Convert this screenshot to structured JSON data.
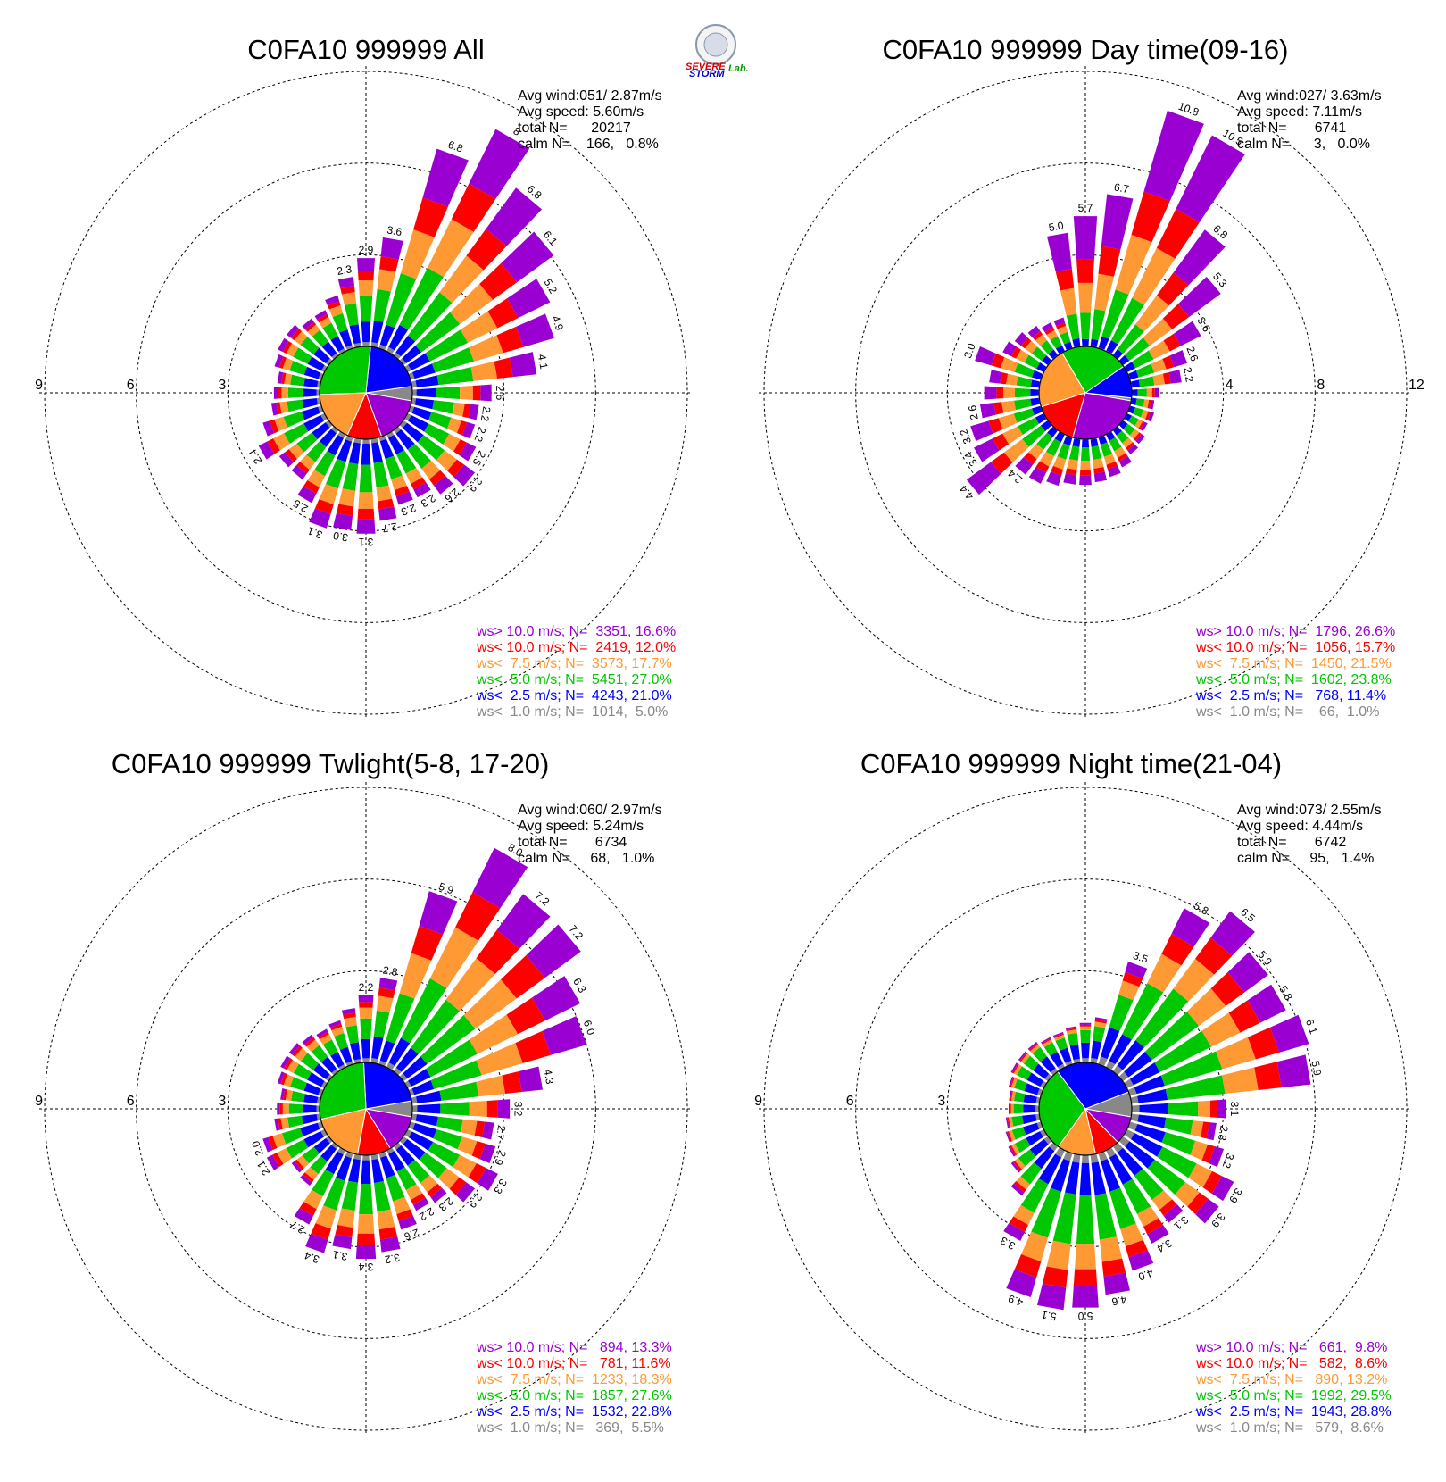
{
  "logo": {
    "word1": "SEVERE",
    "word2": "STORM",
    "word3": "Lab."
  },
  "colors": {
    "gt10": "#9a00d2",
    "lt10": "#ff0000",
    "lt75": "#ff9933",
    "lt5": "#00c800",
    "lt25": "#0000ff",
    "lt1": "#888888"
  },
  "chart_data": [
    {
      "type": "windrose",
      "title": "C0FA10 999999 All",
      "stats": [
        "Avg wind:051/ 2.87m/s",
        "Avg speed: 5.60m/s",
        "total N=      20217",
        "calm N=    166,   0.8%"
      ],
      "ring_labels": [
        "3",
        "6",
        "9"
      ],
      "ring_max": 9,
      "directions_deg": [
        0,
        10,
        20,
        30,
        40,
        50,
        60,
        70,
        80,
        90,
        100,
        110,
        120,
        130,
        140,
        150,
        160,
        170,
        180,
        190,
        200,
        210,
        220,
        230,
        240,
        250,
        260,
        270,
        280,
        290,
        300,
        310,
        320,
        330,
        340,
        350
      ],
      "totals_pct": [
        2.9,
        3.6,
        6.8,
        8.1,
        6.8,
        6.1,
        5.2,
        4.9,
        4.1,
        2.6,
        2.2,
        2.2,
        2.5,
        2.9,
        2.6,
        2.3,
        2.3,
        2.7,
        3.1,
        3.0,
        3.1,
        2.5,
        2.0,
        2.0,
        2.4,
        2.0,
        1.6,
        1.5,
        1.4,
        1.6,
        1.7,
        1.7,
        1.5,
        1.5,
        1.8,
        2.3
      ],
      "bar_labels": [
        "2.9",
        "3.6",
        "6.8",
        "8",
        "6.8",
        "6.1",
        "5.2",
        "4.9",
        "4.1",
        "2.6",
        "2.2",
        "2.2",
        "2.5",
        "2.9",
        "2.6",
        "2.3",
        "2.3",
        "2.7",
        "3.1",
        "3.0",
        "3.1",
        "2.5",
        "",
        "",
        "2.4",
        "",
        "",
        "",
        "",
        "",
        "",
        "",
        "",
        "",
        "",
        "2.3"
      ],
      "legend": [
        {
          "text": "ws> 10.0 m/s; N=  3351, 16.6%",
          "key": "gt10"
        },
        {
          "text": "ws< 10.0 m/s; N=  2419, 12.0%",
          "key": "lt10"
        },
        {
          "text": "ws<  7.5 m/s; N=  3573, 17.7%",
          "key": "lt75"
        },
        {
          "text": "ws<  5.0 m/s; N=  5451, 27.0%",
          "key": "lt5"
        },
        {
          "text": "ws<  2.5 m/s; N=  4243, 21.0%",
          "key": "lt25"
        },
        {
          "text": "ws<  1.0 m/s; N=  1014,  5.0%",
          "key": "lt1"
        }
      ],
      "class_pct": [
        16.6,
        12.0,
        17.7,
        27.0,
        21.0,
        5.0
      ]
    },
    {
      "type": "windrose",
      "title": "C0FA10 999999 Day time(09-16)",
      "stats": [
        "Avg wind:027/ 3.63m/s",
        "Avg speed: 7.11m/s",
        "total N=       6741",
        "calm N=      3,   0.0%"
      ],
      "ring_labels": [
        "4",
        "8",
        "12"
      ],
      "ring_max": 12,
      "directions_deg": [
        0,
        10,
        20,
        30,
        40,
        50,
        60,
        70,
        80,
        90,
        100,
        110,
        120,
        130,
        140,
        150,
        160,
        170,
        180,
        190,
        200,
        210,
        220,
        230,
        240,
        250,
        260,
        270,
        280,
        290,
        300,
        310,
        320,
        330,
        340,
        350
      ],
      "totals_pct": [
        5.7,
        6.7,
        10.8,
        10.5,
        6.8,
        5.3,
        3.6,
        2.6,
        2.2,
        1.2,
        1.0,
        1.1,
        1.0,
        1.2,
        1.3,
        1.6,
        1.8,
        1.9,
        2.0,
        2.0,
        2.2,
        2.4,
        2.4,
        4.4,
        3.4,
        3.2,
        2.6,
        2.4,
        2.2,
        3.0,
        2.0,
        1.8,
        1.6,
        1.4,
        1.4,
        5.0
      ],
      "bar_labels": [
        "5.7",
        "6.7",
        "10.8",
        "10.5",
        "6.8",
        "5.3",
        "3.6",
        "2.6",
        "2.2",
        "",
        "",
        "",
        "",
        "",
        "",
        "",
        "",
        "",
        "",
        "",
        "",
        "",
        "2.4",
        "4.4",
        "3.4",
        "3.2",
        "2.6",
        "",
        "",
        "3.0",
        "",
        "",
        "",
        "",
        "",
        "5.0"
      ],
      "legend": [
        {
          "text": "ws> 10.0 m/s; N=  1796, 26.6%",
          "key": "gt10"
        },
        {
          "text": "ws< 10.0 m/s; N=  1056, 15.7%",
          "key": "lt10"
        },
        {
          "text": "ws<  7.5 m/s; N=  1450, 21.5%",
          "key": "lt75"
        },
        {
          "text": "ws<  5.0 m/s; N=  1602, 23.8%",
          "key": "lt5"
        },
        {
          "text": "ws<  2.5 m/s; N=   768, 11.4%",
          "key": "lt25"
        },
        {
          "text": "ws<  1.0 m/s; N=    66,  1.0%",
          "key": "lt1"
        }
      ],
      "class_pct": [
        26.6,
        15.7,
        21.5,
        23.8,
        11.4,
        1.0
      ]
    },
    {
      "type": "windrose",
      "title": "C0FA10 999999 Twlight(5-8, 17-20)",
      "stats": [
        "Avg wind:060/ 2.97m/s",
        "Avg speed: 5.24m/s",
        "total N=       6734",
        "calm N=     68,   1.0%"
      ],
      "ring_labels": [
        "3",
        "6",
        "9"
      ],
      "ring_max": 9,
      "directions_deg": [
        0,
        10,
        20,
        30,
        40,
        50,
        60,
        70,
        80,
        90,
        100,
        110,
        120,
        130,
        140,
        150,
        160,
        170,
        180,
        190,
        200,
        210,
        220,
        230,
        240,
        250,
        260,
        270,
        280,
        290,
        300,
        310,
        320,
        330,
        340,
        350
      ],
      "totals_pct": [
        2.2,
        2.8,
        5.9,
        8.0,
        7.2,
        7.2,
        6.3,
        6.0,
        4.3,
        3.2,
        2.7,
        2.9,
        3.3,
        2.9,
        2.3,
        2.2,
        2.6,
        3.2,
        3.4,
        3.1,
        3.4,
        2.7,
        1.6,
        1.5,
        2.1,
        2.0,
        1.5,
        1.4,
        1.3,
        1.5,
        1.6,
        1.6,
        1.5,
        1.4,
        1.5,
        1.8
      ],
      "bar_labels": [
        "2.2",
        "2.8",
        "5.9",
        "8.0",
        "7.2",
        "7.2",
        "6.3",
        "6.0",
        "4.3",
        "3.2",
        "2.7",
        "2.9",
        "3.3",
        "2.9",
        "2.3",
        "2.2",
        "2.6",
        "3.2",
        "3.4",
        "3.1",
        "3.4",
        "2.7",
        "",
        "",
        "2.1",
        "2.0",
        "",
        "",
        "",
        "",
        "",
        "",
        "",
        "",
        "",
        ""
      ],
      "legend": [
        {
          "text": "ws> 10.0 m/s; N=   894, 13.3%",
          "key": "gt10"
        },
        {
          "text": "ws< 10.0 m/s; N=   781, 11.6%",
          "key": "lt10"
        },
        {
          "text": "ws<  7.5 m/s; N=  1233, 18.3%",
          "key": "lt75"
        },
        {
          "text": "ws<  5.0 m/s; N=  1857, 27.6%",
          "key": "lt5"
        },
        {
          "text": "ws<  2.5 m/s; N=  1532, 22.8%",
          "key": "lt25"
        },
        {
          "text": "ws<  1.0 m/s; N=   369,  5.5%",
          "key": "lt1"
        }
      ],
      "class_pct": [
        13.3,
        11.6,
        18.3,
        27.6,
        22.8,
        5.5
      ]
    },
    {
      "type": "windrose",
      "title": "C0FA10 999999 Night time(21-04)",
      "stats": [
        "Avg wind:073/ 2.55m/s",
        "Avg speed: 4.44m/s",
        "total N=       6742",
        "calm N=     95,   1.4%"
      ],
      "ring_labels": [
        "3",
        "6",
        "9"
      ],
      "ring_max": 9,
      "directions_deg": [
        0,
        10,
        20,
        30,
        40,
        50,
        60,
        70,
        80,
        90,
        100,
        110,
        120,
        130,
        140,
        150,
        160,
        170,
        180,
        190,
        200,
        210,
        220,
        230,
        240,
        250,
        260,
        270,
        280,
        290,
        300,
        310,
        320,
        330,
        340,
        350
      ],
      "totals_pct": [
        1.3,
        1.5,
        3.5,
        5.8,
        6.5,
        5.9,
        5.8,
        6.1,
        5.9,
        3.1,
        2.8,
        3.2,
        3.9,
        3.9,
        3.1,
        3.4,
        4.0,
        4.6,
        5.0,
        5.1,
        4.9,
        3.3,
        2.0,
        1.5,
        1.3,
        1.2,
        1.1,
        1.0,
        1.0,
        1.1,
        1.2,
        1.2,
        1.2,
        1.1,
        1.1,
        1.2
      ],
      "bar_labels": [
        "",
        "",
        "3.5",
        "5.8",
        "6.5",
        "5.9",
        "5.8",
        "6.1",
        "5.9",
        "3.1",
        "2.8",
        "3.2",
        "3.9",
        "3.9",
        "3.1",
        "3.4",
        "4.0",
        "4.6",
        "5.0",
        "5.1",
        "4.9",
        "3.3",
        "",
        "",
        "",
        "",
        "",
        "",
        "",
        "",
        "",
        "",
        "",
        "",
        "",
        ""
      ],
      "legend": [
        {
          "text": "ws> 10.0 m/s; N=   661,  9.8%",
          "key": "gt10"
        },
        {
          "text": "ws< 10.0 m/s; N=   582,  8.6%",
          "key": "lt10"
        },
        {
          "text": "ws<  7.5 m/s; N=   890, 13.2%",
          "key": "lt75"
        },
        {
          "text": "ws<  5.0 m/s; N=  1992, 29.5%",
          "key": "lt5"
        },
        {
          "text": "ws<  2.5 m/s; N=  1943, 28.8%",
          "key": "lt25"
        },
        {
          "text": "ws<  1.0 m/s; N=   579,  8.6%",
          "key": "lt1"
        }
      ],
      "class_pct": [
        9.8,
        8.6,
        13.2,
        29.5,
        28.8,
        8.6
      ]
    }
  ]
}
